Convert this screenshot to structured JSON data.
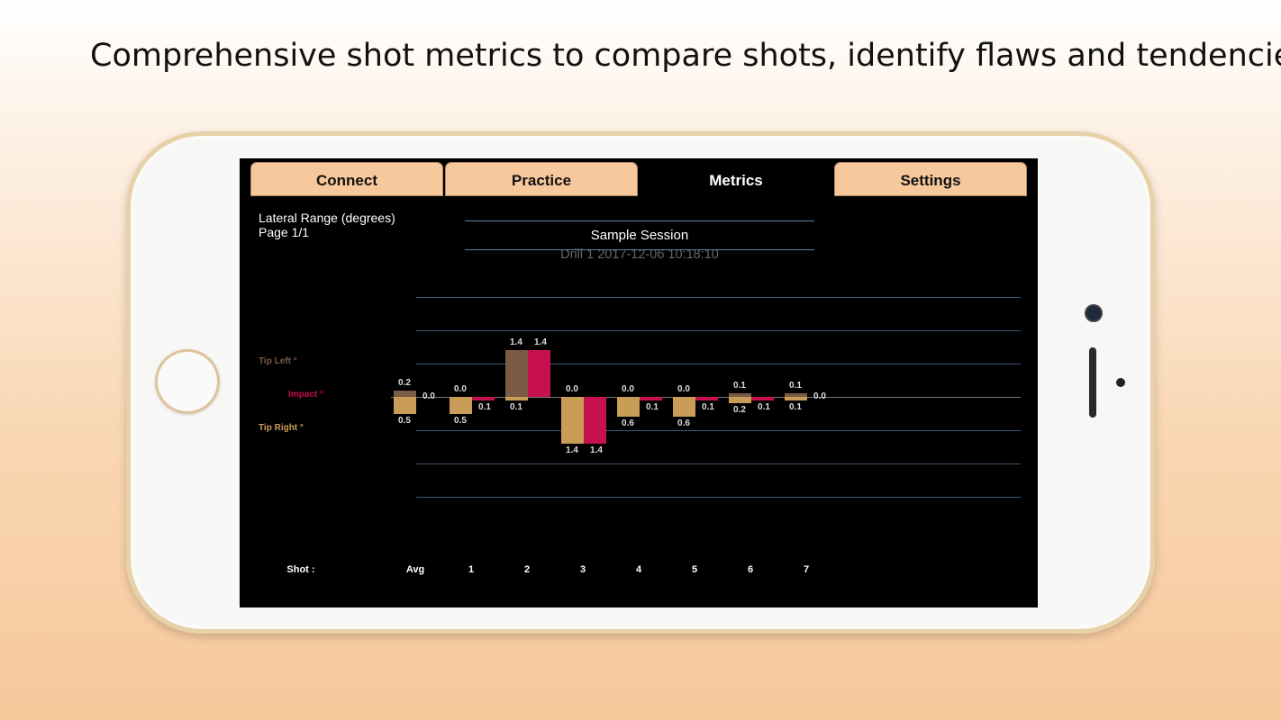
{
  "promo_text": "Comprehensive shot metrics to compare shots, identify flaws and tendencies.",
  "tabs": [
    {
      "label": "Connect",
      "active": false
    },
    {
      "label": "Practice",
      "active": false
    },
    {
      "label": "Metrics",
      "active": true
    },
    {
      "label": "Settings",
      "active": false
    }
  ],
  "metric_title": "Lateral Range  (degrees)",
  "page_label": "Page 1/1",
  "session_title": "Sample Session",
  "drill_label": "Drill 1 2017-12-06 10:18:10",
  "legend": {
    "tip_left": {
      "label": "Tip Left °",
      "color": "#7b5a46"
    },
    "impact": {
      "label": "Impact °",
      "color": "#c7104f"
    },
    "tip_right": {
      "label": "Tip Right °",
      "color": "#c99d58"
    }
  },
  "shot_label": "Shot :",
  "chart_data": {
    "type": "bar",
    "categories": [
      "Avg",
      "1",
      "2",
      "3",
      "4",
      "5",
      "6",
      "7"
    ],
    "series": [
      {
        "name": "Tip Left °",
        "values": [
          0.2,
          0.0,
          1.4,
          0.0,
          0.0,
          0.0,
          0.1,
          0.1
        ]
      },
      {
        "name": "Tip Right °",
        "values": [
          0.5,
          0.5,
          0.1,
          1.4,
          0.6,
          0.6,
          0.2,
          0.1
        ]
      },
      {
        "name": "Impact °",
        "values": [
          0.0,
          -0.1,
          1.4,
          -1.4,
          -0.1,
          -0.1,
          -0.1,
          0.0
        ]
      }
    ],
    "labels": {
      "tip_left": [
        "0.2",
        "0.0",
        "1.4",
        "0.0",
        "0.0",
        "0.0",
        "0.1",
        "0.1"
      ],
      "tip_right": [
        "0.5",
        "0.5",
        "0.1",
        "1.4",
        "0.6",
        "0.6",
        "0.2",
        "0.1"
      ],
      "impact": [
        "0.0",
        "0.1",
        "1.4",
        "1.4",
        "0.1",
        "0.1",
        "0.1",
        "0.0"
      ]
    },
    "grid": true
  },
  "colors": {
    "tab_bg": "#f7c89b",
    "screen_bg": "#000000",
    "grid": "#3f5873"
  }
}
